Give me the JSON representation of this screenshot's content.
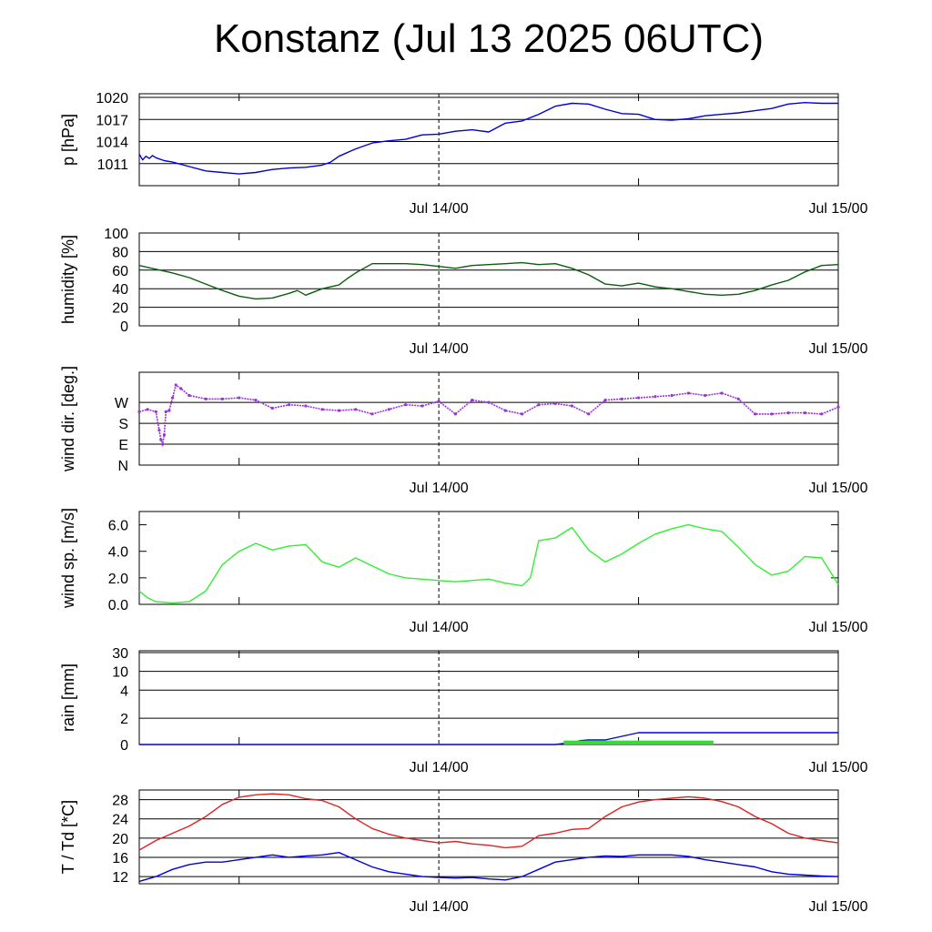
{
  "title": "Konstanz (Jul 13 2025 06UTC)",
  "chart_data": [
    {
      "type": "line",
      "ylabel": "p [hPa]",
      "xtick_labels": [
        "Jul 14/00",
        "Jul 15/00"
      ],
      "ylim": [
        1008.0,
        1020.5
      ],
      "ytick_values": [
        1011,
        1014,
        1017,
        1020
      ],
      "ytick_labels": [
        "1011",
        "1014",
        "1017",
        "1020"
      ],
      "grid": true,
      "series": [
        {
          "color": "#0000dd",
          "x": [
            0,
            0.2,
            0.4,
            0.6,
            0.8,
            1.0,
            1.5,
            2,
            3,
            4,
            5,
            6,
            7,
            7.5,
            8,
            9,
            10,
            11,
            11.5,
            12,
            13,
            14,
            15,
            16,
            17,
            18,
            19,
            20,
            21,
            22,
            23,
            24,
            25,
            26,
            27,
            28,
            29,
            30,
            31,
            32,
            33,
            34,
            35,
            36,
            37,
            38,
            39,
            40,
            41,
            42
          ],
          "y": [
            1012.3,
            1011.5,
            1012.0,
            1011.7,
            1012.1,
            1011.8,
            1011.4,
            1011.2,
            1010.6,
            1010.0,
            1009.8,
            1009.6,
            1009.8,
            1010.0,
            1010.2,
            1010.4,
            1010.5,
            1010.8,
            1011.2,
            1012.0,
            1013.0,
            1013.8,
            1014.1,
            1014.3,
            1014.9,
            1015.0,
            1015.4,
            1015.6,
            1015.3,
            1016.5,
            1016.8,
            1017.7,
            1018.8,
            1019.2,
            1019.1,
            1018.4,
            1017.8,
            1017.7,
            1017.0,
            1016.9,
            1017.1,
            1017.5,
            1017.7,
            1017.9,
            1018.2,
            1018.5,
            1019.1,
            1019.3,
            1019.2,
            1019.2
          ]
        }
      ]
    },
    {
      "type": "line",
      "ylabel": "humidity [%]",
      "xtick_labels": [
        "Jul 14/00",
        "Jul 15/00"
      ],
      "ylim": [
        0,
        100
      ],
      "ytick_values": [
        0,
        20,
        40,
        60,
        80,
        100
      ],
      "ytick_labels": [
        "0",
        "20",
        "40",
        "60",
        "80",
        "100"
      ],
      "grid": true,
      "series": [
        {
          "color": "#0b5e0b",
          "x": [
            0,
            1,
            2,
            3,
            4,
            5,
            6,
            7,
            8,
            9,
            9.5,
            10,
            11,
            12,
            12.5,
            13,
            14,
            15,
            16,
            17,
            18,
            19,
            20,
            21,
            22,
            23,
            24,
            25,
            26,
            27,
            28,
            29,
            30,
            31,
            32,
            33,
            34,
            35,
            36,
            37,
            38,
            39,
            40,
            41,
            42
          ],
          "y": [
            65,
            61,
            57,
            52,
            45,
            38,
            32,
            29,
            30,
            35,
            38,
            33,
            40,
            44,
            51,
            57,
            67,
            67,
            67,
            66,
            64,
            62,
            65,
            66,
            67,
            68,
            66,
            67,
            62,
            55,
            45,
            43,
            46,
            42,
            40,
            37,
            34,
            33,
            34,
            38,
            44,
            49,
            58,
            65,
            66
          ]
        }
      ]
    },
    {
      "type": "scatter",
      "ylabel": "wind dir. [deg.]",
      "xtick_labels": [
        "Jul 14/00",
        "Jul 15/00"
      ],
      "ylim": [
        0,
        400
      ],
      "ytick_values": [
        0,
        90,
        180,
        270
      ],
      "ytick_labels": [
        "N",
        "E",
        "S",
        "W"
      ],
      "grid": true,
      "series": [
        {
          "color": "#9933dd",
          "x": [
            0,
            0.5,
            1.0,
            1.2,
            1.3,
            1.4,
            1.5,
            1.6,
            1.8,
            2.0,
            2.2,
            2.5,
            3,
            4,
            5,
            6,
            7,
            8,
            9,
            10,
            11,
            12,
            13,
            14,
            15,
            16,
            17,
            18,
            19,
            20,
            21,
            22,
            23,
            24,
            25,
            26,
            27,
            28,
            29,
            30,
            31,
            32,
            33,
            34,
            35,
            36,
            37,
            38,
            39,
            40,
            41,
            42
          ],
          "y": [
            230,
            240,
            230,
            150,
            110,
            90,
            130,
            230,
            235,
            290,
            345,
            330,
            300,
            285,
            285,
            290,
            280,
            245,
            260,
            255,
            240,
            235,
            240,
            220,
            240,
            260,
            255,
            275,
            220,
            280,
            270,
            235,
            220,
            260,
            265,
            255,
            220,
            280,
            285,
            290,
            295,
            300,
            310,
            300,
            310,
            285,
            220,
            220,
            225,
            225,
            220,
            250
          ]
        }
      ]
    },
    {
      "type": "line",
      "ylabel": "wind sp. [m/s]",
      "xtick_labels": [
        "Jul 14/00",
        "Jul 15/00"
      ],
      "ylim": [
        0,
        7.0
      ],
      "ytick_values": [
        0,
        2,
        4,
        6
      ],
      "ytick_labels": [
        "0.0",
        "2.0",
        "4.0",
        "6.0"
      ],
      "grid": false,
      "series": [
        {
          "color": "#33ee33",
          "x": [
            0,
            0.5,
            1,
            2,
            3,
            4,
            5,
            6,
            7,
            8,
            9,
            10,
            11,
            12,
            13,
            14,
            15,
            16,
            17,
            18,
            19,
            20,
            21,
            22,
            23,
            23.5,
            24,
            25,
            26,
            27,
            28,
            29,
            30,
            31,
            32,
            33,
            34,
            35,
            36,
            37,
            38,
            39,
            40,
            41,
            42
          ],
          "y": [
            1.0,
            0.5,
            0.2,
            0.1,
            0.2,
            1.0,
            3.0,
            4.0,
            4.6,
            4.1,
            4.4,
            4.5,
            3.2,
            2.8,
            3.5,
            2.9,
            2.3,
            2.0,
            1.9,
            1.8,
            1.7,
            1.8,
            1.9,
            1.6,
            1.4,
            2.0,
            4.8,
            5.0,
            5.8,
            4.1,
            3.2,
            3.8,
            4.6,
            5.3,
            5.7,
            6.0,
            5.7,
            5.5,
            4.3,
            3.0,
            2.2,
            2.5,
            3.6,
            3.5,
            1.5
          ]
        }
      ]
    },
    {
      "type": "area",
      "ylabel": "rain [mm]",
      "xtick_labels": [
        "Jul 14/00",
        "Jul 15/00"
      ],
      "ylim": [
        0,
        30
      ],
      "ytick_values": [
        0,
        2,
        4,
        10,
        30
      ],
      "ytick_labels": [
        "0",
        "2",
        "4",
        "10",
        "30"
      ],
      "grid": true,
      "series": [
        {
          "color": "#0000dd",
          "x": [
            0,
            25,
            26,
            26.5,
            27,
            28,
            30,
            42
          ],
          "y": [
            0,
            0,
            0.15,
            0.3,
            0.35,
            0.35,
            0.9,
            0.9
          ]
        },
        {
          "color": "#33dd33",
          "x": [
            25.5,
            34.5
          ],
          "y": [
            0.3,
            0.3
          ]
        }
      ]
    },
    {
      "type": "line",
      "ylabel": "T / Td [*C]",
      "xtick_labels": [
        "Jul 14/00",
        "Jul 15/00"
      ],
      "ylim": [
        10.5,
        30
      ],
      "ytick_values": [
        12,
        16,
        20,
        24,
        28
      ],
      "ytick_labels": [
        "12",
        "16",
        "20",
        "24",
        "28"
      ],
      "grid": true,
      "series": [
        {
          "color": "#dd2222",
          "x": [
            0,
            1,
            2,
            3,
            4,
            5,
            6,
            7,
            8,
            9,
            10,
            11,
            12,
            13,
            14,
            15,
            16,
            17,
            18,
            19,
            20,
            21,
            22,
            23,
            24,
            25,
            26,
            27,
            28,
            29,
            30,
            31,
            32,
            33,
            34,
            35,
            36,
            37,
            38,
            39,
            40,
            41,
            42
          ],
          "y": [
            17.5,
            19.5,
            21.0,
            22.5,
            24.5,
            27.0,
            28.5,
            29.0,
            29.2,
            29.0,
            28.2,
            27.8,
            26.5,
            24.0,
            22.0,
            20.8,
            20.0,
            19.5,
            19.0,
            19.3,
            18.8,
            18.5,
            18.0,
            18.3,
            20.5,
            21.0,
            21.8,
            22.0,
            24.5,
            26.5,
            27.5,
            28.0,
            28.3,
            28.6,
            28.3,
            27.6,
            26.5,
            24.5,
            23.0,
            21.0,
            20.0,
            19.5,
            19.0
          ]
        },
        {
          "color": "#0000dd",
          "x": [
            0,
            1,
            2,
            3,
            4,
            5,
            6,
            7,
            8,
            9,
            10,
            11,
            12,
            13,
            14,
            15,
            16,
            17,
            18,
            19,
            20,
            21,
            22,
            23,
            24,
            25,
            26,
            27,
            28,
            29,
            30,
            31,
            32,
            33,
            34,
            35,
            36,
            37,
            38,
            39,
            40,
            41,
            42
          ],
          "y": [
            11.0,
            12.0,
            13.5,
            14.5,
            15.0,
            15.0,
            15.5,
            16.0,
            16.5,
            16.0,
            16.3,
            16.5,
            17.0,
            15.5,
            14.0,
            13.0,
            12.5,
            12.0,
            11.8,
            11.7,
            11.8,
            11.5,
            11.3,
            12.0,
            13.5,
            15.0,
            15.5,
            16.0,
            16.3,
            16.2,
            16.5,
            16.5,
            16.5,
            16.2,
            15.5,
            15.0,
            14.5,
            14.0,
            13.0,
            12.5,
            12.3,
            12.1,
            12.0
          ]
        }
      ]
    }
  ]
}
